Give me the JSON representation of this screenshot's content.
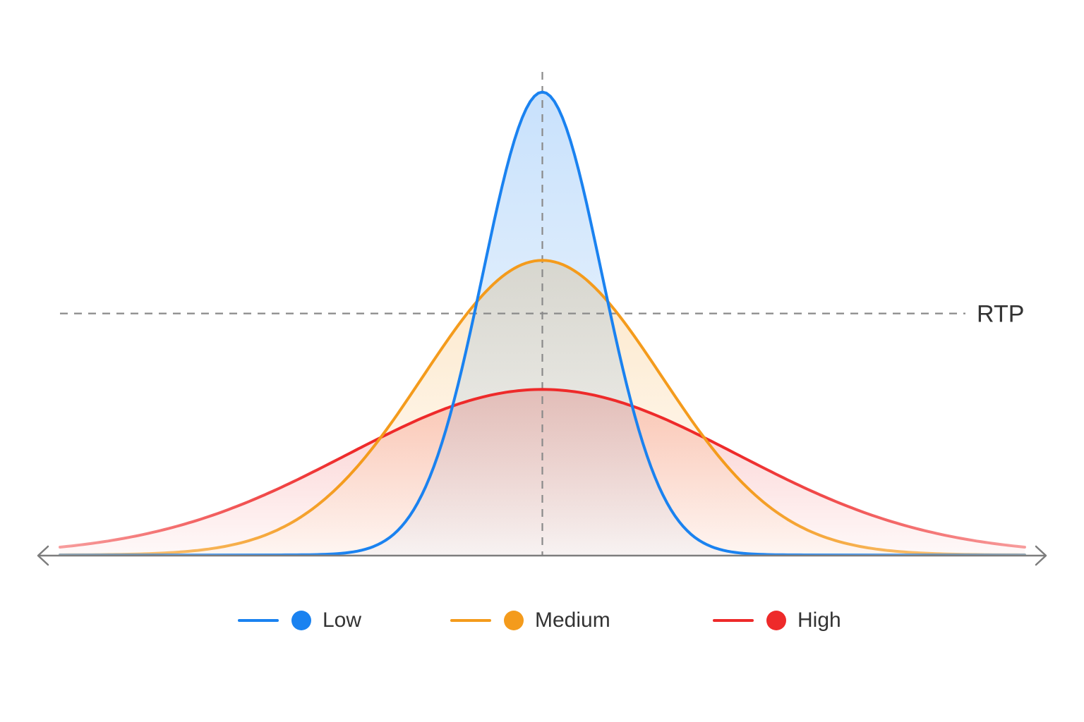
{
  "chart_data": {
    "type": "line",
    "title": "",
    "xlabel": "",
    "ylabel": "",
    "xlim": [
      -4.45,
      4.45
    ],
    "ylim": [
      0,
      1
    ],
    "grid": false,
    "legend_position": "bottom",
    "reference_lines": [
      {
        "orientation": "horizontal",
        "value": 0.518,
        "label": "RTP",
        "color": "#8a8a8a"
      },
      {
        "orientation": "vertical",
        "value": 0,
        "label": "",
        "color": "#8a8a8a"
      }
    ],
    "series": [
      {
        "name": "Low",
        "color": "#1a82f0",
        "mean": 0,
        "sd": 0.55,
        "peak": 0.993
      },
      {
        "name": "Medium",
        "color": "#f49b1c",
        "mean": 0,
        "sd": 1.1,
        "peak": 0.632
      },
      {
        "name": "High",
        "color": "#ee2a2a",
        "mean": 0,
        "sd": 1.8,
        "peak": 0.355
      }
    ]
  }
}
